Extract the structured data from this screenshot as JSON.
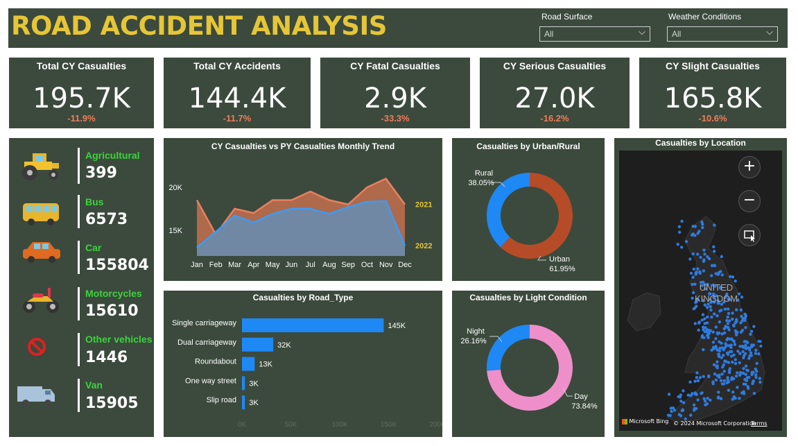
{
  "header": {
    "title": "ROAD ACCIDENT ANALYSIS",
    "road_surface": {
      "label": "Road Surface",
      "value": "All"
    },
    "weather": {
      "label": "Weather Conditions",
      "value": "All"
    }
  },
  "kpis": [
    {
      "title": "Total CY Casualties",
      "value": "195.7K",
      "delta": "-11.9%"
    },
    {
      "title": "Total CY Accidents",
      "value": "144.4K",
      "delta": "-11.7%"
    },
    {
      "title": "CY Fatal Casualties",
      "value": "2.9K",
      "delta": "-33.3%"
    },
    {
      "title": "CY Serious Casualties",
      "value": "27.0K",
      "delta": "-16.2%"
    },
    {
      "title": "CY Slight Casualties",
      "value": "165.8K",
      "delta": "-10.6%"
    }
  ],
  "vehicles": [
    {
      "label": "Agricultural",
      "count": "399",
      "icon": "tractor-icon"
    },
    {
      "label": "Bus",
      "count": "6573",
      "icon": "bus-icon"
    },
    {
      "label": "Car",
      "count": "155804",
      "icon": "car-icon"
    },
    {
      "label": "Motorcycles",
      "count": "15610",
      "icon": "motorcycle-icon"
    },
    {
      "label": "Other vehicles",
      "count": "1446",
      "icon": "no-entry-icon"
    },
    {
      "label": "Van",
      "count": "15905",
      "icon": "van-icon"
    }
  ],
  "colors": {
    "panel": "#3b4a3c",
    "title": "#e6c537",
    "cy": "#4a90e2",
    "py": "#e2815a",
    "urban": "#b64c27",
    "rural": "#1e88f5",
    "day": "#ee8fca",
    "night": "#1e88f5",
    "bar": "#1e88f5"
  },
  "map": {
    "title": "Casualties by Location",
    "zoom_in": "+",
    "zoom_out": "−",
    "country_line1": "UNITED",
    "country_line2": "KINGDOM",
    "bing": "Microsoft Bing",
    "copyright": "© 2024 Microsoft Corporation",
    "terms": "Terms"
  },
  "chart_data": [
    {
      "type": "area",
      "title": "CY Casualties vs PY Casualties Monthly Trend",
      "categories": [
        "Jan",
        "Feb",
        "Mar",
        "Apr",
        "May",
        "Jun",
        "Jul",
        "Aug",
        "Sep",
        "Oct",
        "Nov",
        "Dec"
      ],
      "ylim": [
        12000,
        22500
      ],
      "yticks": [
        {
          "v": 15000,
          "label": "15K"
        },
        {
          "v": 20000,
          "label": "20K"
        }
      ],
      "series": [
        {
          "name": "2021",
          "values": [
            18500,
            14500,
            17500,
            17000,
            18500,
            18500,
            19500,
            18500,
            18000,
            20000,
            21000,
            18000
          ]
        },
        {
          "name": "2022",
          "values": [
            13000,
            14800,
            16700,
            15900,
            16900,
            17500,
            17500,
            16900,
            17700,
            18300,
            18400,
            13200
          ]
        }
      ]
    },
    {
      "type": "pie",
      "title": "Casualties by Urban/Rural",
      "labels": [
        "Urban",
        "Rural"
      ],
      "values": [
        61.95,
        38.05
      ],
      "value_labels": [
        "61.95%",
        "38.05%"
      ]
    },
    {
      "type": "bar",
      "title": "Casualties by Road_Type",
      "categories": [
        "Single carriageway",
        "Dual carriageway",
        "Roundabout",
        "One way street",
        "Slip road"
      ],
      "values": [
        145000,
        32000,
        13000,
        3000,
        3000
      ],
      "value_labels": [
        "145K",
        "32K",
        "13K",
        "3K",
        "3K"
      ],
      "xlim": [
        0,
        200000
      ],
      "xticks": [
        "0K",
        "50K",
        "100K",
        "150K",
        "200K"
      ]
    },
    {
      "type": "pie",
      "title": "Casualties by Light Condition",
      "labels": [
        "Day",
        "Night"
      ],
      "values": [
        73.84,
        26.16
      ],
      "value_labels": [
        "73.84%",
        "26.16%"
      ]
    }
  ]
}
